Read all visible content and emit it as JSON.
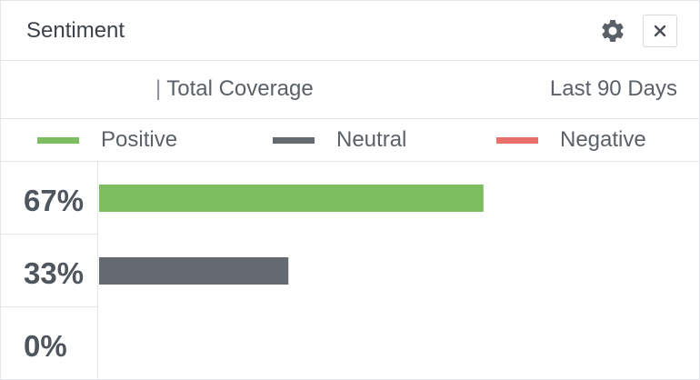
{
  "widget": {
    "title": "Sentiment",
    "settings_icon": "gear-icon",
    "close_icon": "close-icon",
    "close_label": "×"
  },
  "subheader": {
    "coverage_separator": "|",
    "coverage_label": "Total Coverage",
    "date_range": "Last 90 Days"
  },
  "legend": [
    {
      "name": "Positive",
      "color": "#7cbe5f"
    },
    {
      "name": "Neutral",
      "color": "#656a71"
    },
    {
      "name": "Negative",
      "color": "#e8706b"
    }
  ],
  "chart_data": {
    "type": "bar",
    "orientation": "horizontal",
    "categories": [
      "Positive",
      "Neutral",
      "Negative"
    ],
    "values": [
      67,
      33,
      0
    ],
    "labels": [
      "67%",
      "33%",
      "0%"
    ],
    "colors": [
      "#7cbe5f",
      "#656a71",
      "#e8706b"
    ],
    "xlim": [
      0,
      100
    ],
    "grid": false,
    "legend": "top"
  }
}
